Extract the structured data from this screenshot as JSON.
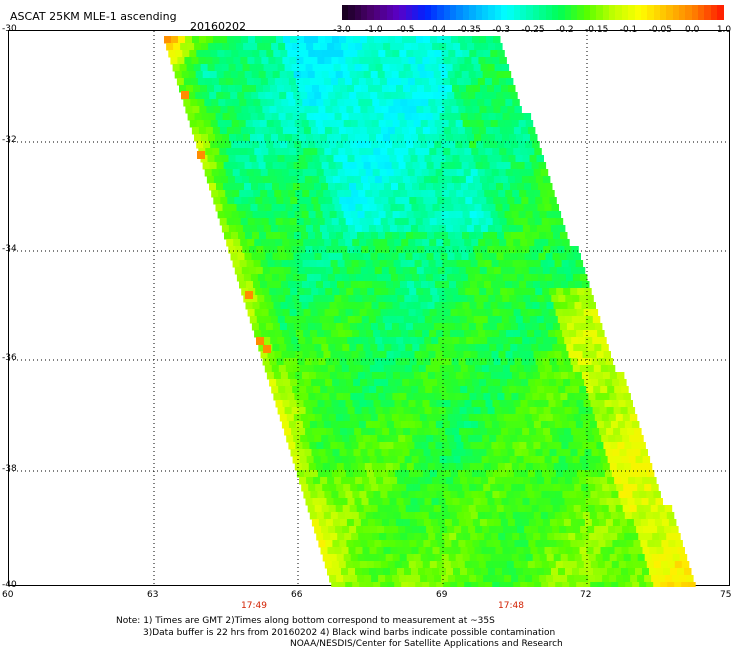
{
  "header": {
    "title": "ASCAT 25KM MLE-1 ascending",
    "date": "20160202"
  },
  "colorbar": {
    "labels": [
      "-3.0",
      "-1.0",
      "-0.5",
      "-0.4",
      "-0.35",
      "-0.3",
      "-0.25",
      "-0.2",
      "-0.15",
      "-0.1",
      "-0.05",
      "0.0",
      "1.0"
    ],
    "colors": [
      "#1a0022",
      "#4c0070",
      "#5a00c8",
      "#0022ff",
      "#0077ff",
      "#00bfff",
      "#00ffff",
      "#00ffaa",
      "#00ff55",
      "#55ff00",
      "#bfff00",
      "#ffff00",
      "#ffbf00",
      "#ff8000",
      "#ff2200"
    ]
  },
  "axes": {
    "y_labels": [
      "-30",
      "-32",
      "-34",
      "-36",
      "-38",
      "-40"
    ],
    "x_labels": [
      "60",
      "63",
      "66",
      "69",
      "72",
      "75"
    ],
    "time_labels": [
      "17:49",
      "17:48"
    ]
  },
  "notes": {
    "line1": "Note: 1) Times are GMT 2)Times along bottom correspond to measurement at ~35S",
    "line2": "3)Data buffer is 22 hrs from 20160202 4) Black wind barbs indicate possible contamination",
    "line3": "NOAA/NESDIS/Center for Satellite Applications and Research"
  }
}
